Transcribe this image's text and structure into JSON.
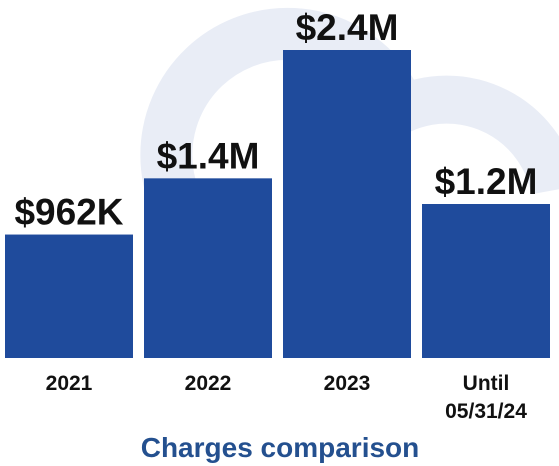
{
  "chart_data": {
    "type": "bar",
    "title": "Charges comparison",
    "categories": [
      "2021",
      "2022",
      "2023",
      "Until 05/31/24"
    ],
    "category_lines": [
      [
        "2021"
      ],
      [
        "2022"
      ],
      [
        "2023"
      ],
      [
        "Until",
        "05/31/24"
      ]
    ],
    "values": [
      962000,
      1400000,
      2400000,
      1200000
    ],
    "value_labels": [
      "$962K",
      "$1.4M",
      "$2.4M",
      "$1.2M"
    ],
    "xlabel": "",
    "ylabel": "",
    "ylim": [
      0,
      2400000
    ],
    "grid": false,
    "legend": "none",
    "colors": {
      "bar": "#1f4b9c",
      "title": "#24508f",
      "watermark": "#e9edf6"
    }
  }
}
